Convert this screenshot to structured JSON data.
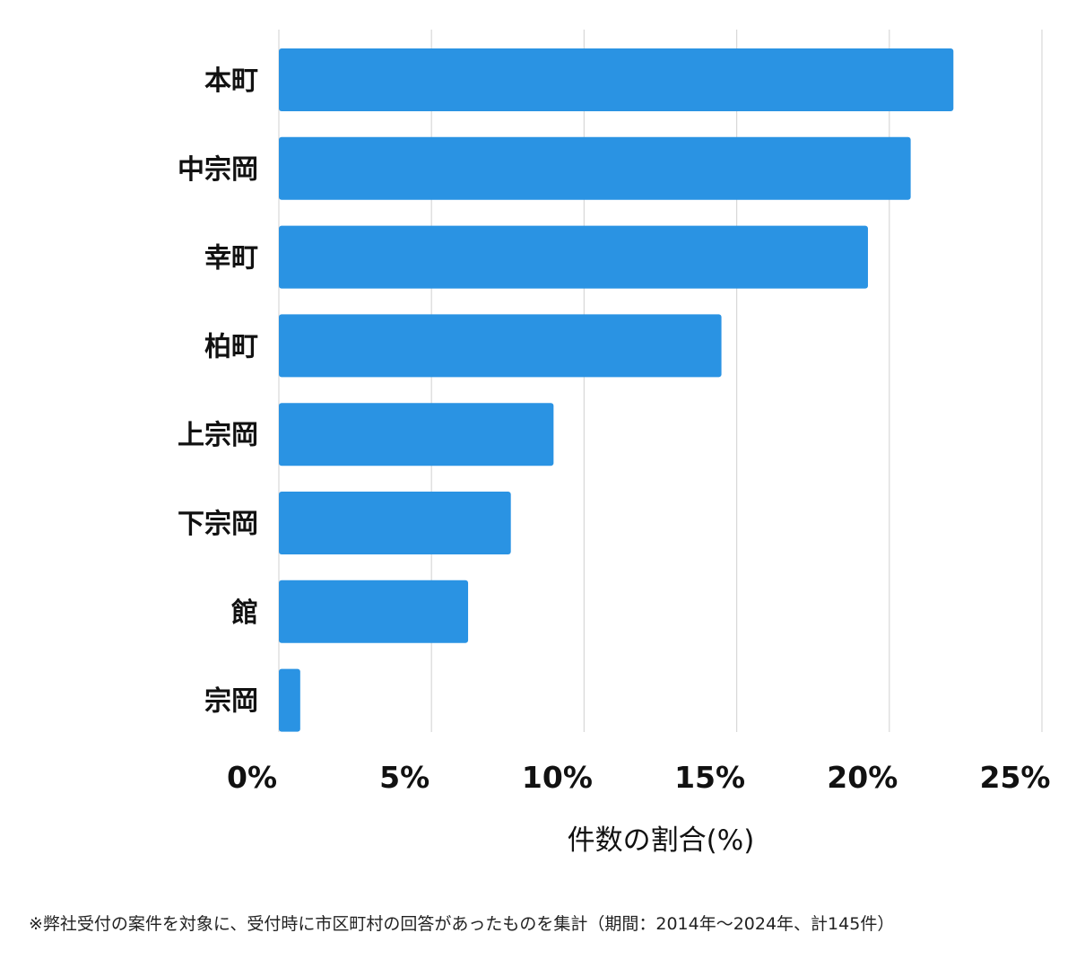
{
  "chart_data": {
    "type": "bar",
    "orientation": "horizontal",
    "categories": [
      "本町",
      "中宗岡",
      "幸町",
      "柏町",
      "上宗岡",
      "下宗岡",
      "館",
      "宗岡"
    ],
    "values": [
      22.1,
      20.7,
      19.3,
      14.5,
      9.0,
      7.6,
      6.2,
      0.7
    ],
    "xlim": [
      0,
      25
    ],
    "xticks": [
      0,
      5,
      10,
      15,
      20,
      25
    ],
    "tick_labels": [
      "0%",
      "5%",
      "10%",
      "15%",
      "20%",
      "25%"
    ],
    "xlabel": "件数の割合(%)",
    "ylabel": "",
    "grid": true,
    "bar_color": "#2a93e3",
    "grid_color": "#d8d8d8"
  },
  "footnote": "※弊社受付の案件を対象に、受付時に市区町村の回答があったものを集計（期間：2014年～2024年、計145件）"
}
